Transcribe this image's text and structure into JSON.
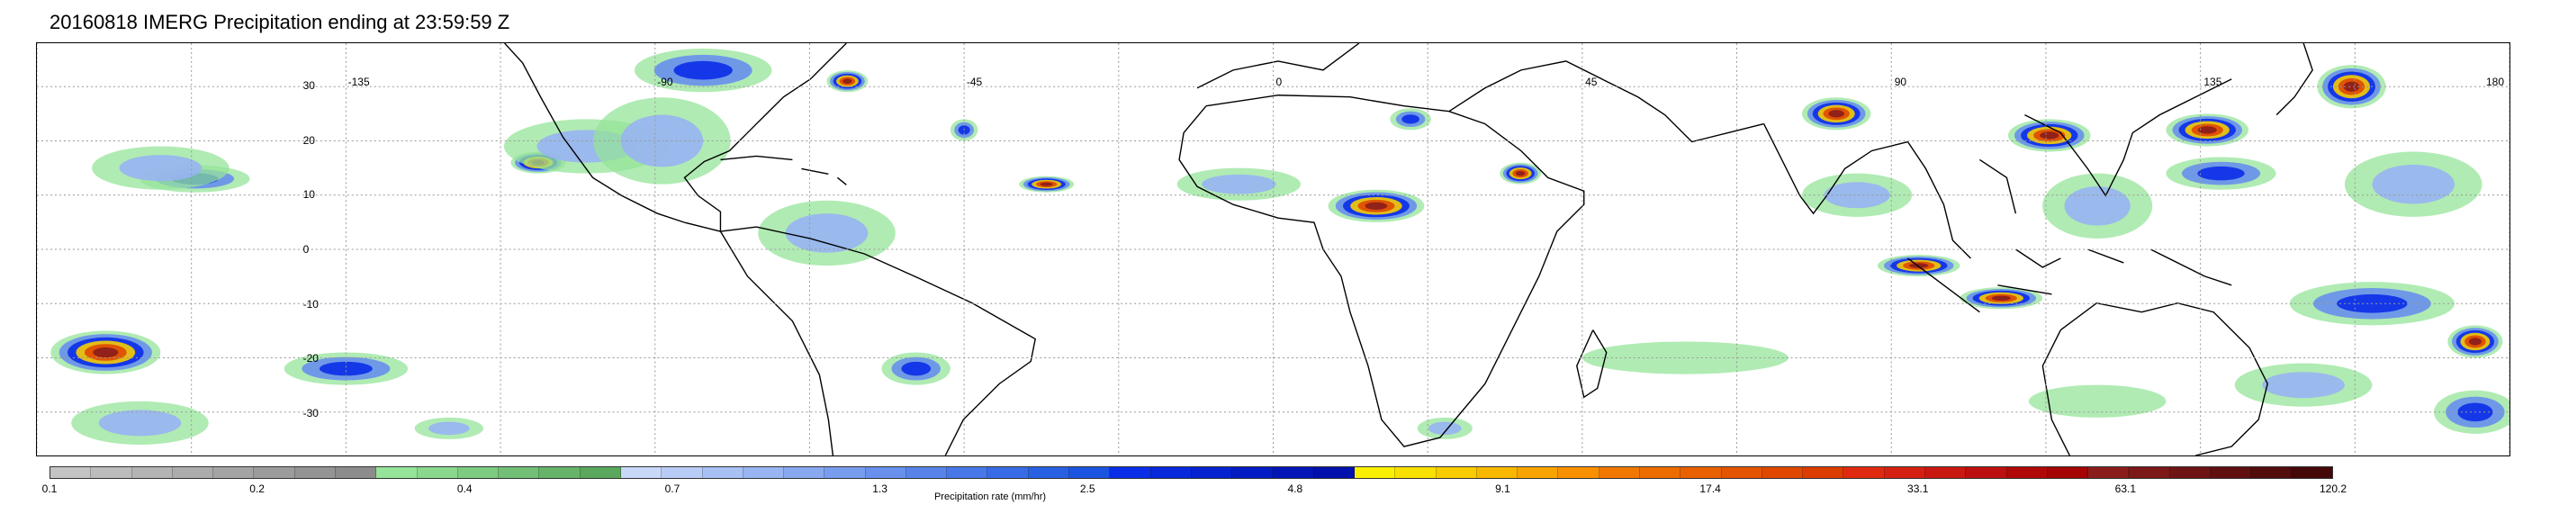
{
  "title": "20160818 IMERG Precipitation ending at 23:59:59 Z",
  "map": {
    "lon_range": [
      -180,
      180
    ],
    "lat_range": [
      -38,
      38
    ],
    "lon_labels": [
      "-135",
      "-90",
      "-45",
      "0",
      "45",
      "90",
      "135",
      "180"
    ],
    "lat_labels": [
      "30",
      "20",
      "10",
      "0",
      "-10",
      "-20",
      "-30"
    ],
    "gridlines": "dotted",
    "basemap": "coastlines"
  },
  "colorbar": {
    "caption": "Precipitation rate (mm/hr)",
    "tick_labels": [
      "0.1",
      "0.2",
      "0.4",
      "0.7",
      "1.3",
      "2.5",
      "4.8",
      "9.1",
      "17.4",
      "33.1",
      "63.1",
      "120.2"
    ],
    "colors": [
      "#c4c4c4",
      "#bcbcbc",
      "#b4b4b4",
      "#acacac",
      "#a4a4a4",
      "#9c9c9c",
      "#949494",
      "#8c8c8c",
      "#96e49a",
      "#8ad88e",
      "#7ecb82",
      "#72bf76",
      "#66b36a",
      "#5aa75e",
      "#c8d8f8",
      "#b8ccf6",
      "#a8c0f4",
      "#98b4f2",
      "#88a8f0",
      "#789cee",
      "#6890ec",
      "#5884ea",
      "#4878e8",
      "#386ce6",
      "#2860e4",
      "#1c54e2",
      "#0a2ee8",
      "#0828dc",
      "#0622d0",
      "#041cc4",
      "#0216b8",
      "#0010ac",
      "#f8f000",
      "#f8e000",
      "#f8cc00",
      "#f8b800",
      "#f8a400",
      "#f89000",
      "#f07800",
      "#ec6c00",
      "#e86000",
      "#e45400",
      "#e04800",
      "#dc3c00",
      "#e02a10",
      "#d42010",
      "#c81810",
      "#bc1010",
      "#b00808",
      "#a40404",
      "#8a1c1c",
      "#7c1818",
      "#6e1414",
      "#601010",
      "#520c0c",
      "#440808"
    ]
  },
  "precip_regions": [
    {
      "lon": -157,
      "lat": 13,
      "rx": 8,
      "ry": 2.5,
      "level": "moderate"
    },
    {
      "lon": -162,
      "lat": 15,
      "rx": 10,
      "ry": 4,
      "level": "light"
    },
    {
      "lon": -107,
      "lat": 16,
      "rx": 4,
      "ry": 2,
      "level": "heavy"
    },
    {
      "lon": -100,
      "lat": 19,
      "rx": 12,
      "ry": 5,
      "level": "light"
    },
    {
      "lon": -83,
      "lat": 33,
      "rx": 10,
      "ry": 4,
      "level": "moderate"
    },
    {
      "lon": -89,
      "lat": 20,
      "rx": 10,
      "ry": 8,
      "level": "light"
    },
    {
      "lon": -62,
      "lat": 31,
      "rx": 3,
      "ry": 2,
      "level": "heavy"
    },
    {
      "lon": -45,
      "lat": 22,
      "rx": 2,
      "ry": 2,
      "level": "moderate"
    },
    {
      "lon": -33,
      "lat": 12,
      "rx": 4,
      "ry": 1.5,
      "level": "heavy"
    },
    {
      "lon": -65,
      "lat": 3,
      "rx": 10,
      "ry": 6,
      "level": "light"
    },
    {
      "lon": -52,
      "lat": -22,
      "rx": 5,
      "ry": 3,
      "level": "moderate"
    },
    {
      "lon": -170,
      "lat": -19,
      "rx": 8,
      "ry": 4,
      "level": "heavy"
    },
    {
      "lon": -165,
      "lat": -32,
      "rx": 10,
      "ry": 4,
      "level": "light"
    },
    {
      "lon": -135,
      "lat": -22,
      "rx": 9,
      "ry": 3,
      "level": "moderate"
    },
    {
      "lon": -120,
      "lat": -33,
      "rx": 5,
      "ry": 2,
      "level": "light"
    },
    {
      "lon": -5,
      "lat": 12,
      "rx": 9,
      "ry": 3,
      "level": "light"
    },
    {
      "lon": 15,
      "lat": 8,
      "rx": 7,
      "ry": 3,
      "level": "heavy"
    },
    {
      "lon": 36,
      "lat": 14,
      "rx": 3,
      "ry": 2,
      "level": "heavy"
    },
    {
      "lon": 20,
      "lat": 24,
      "rx": 3,
      "ry": 2,
      "level": "moderate"
    },
    {
      "lon": 25,
      "lat": -33,
      "rx": 4,
      "ry": 2,
      "level": "light"
    },
    {
      "lon": 82,
      "lat": 25,
      "rx": 5,
      "ry": 3,
      "level": "heavy"
    },
    {
      "lon": 85,
      "lat": 10,
      "rx": 8,
      "ry": 4,
      "level": "light"
    },
    {
      "lon": 94,
      "lat": -3,
      "rx": 6,
      "ry": 2,
      "level": "heavy"
    },
    {
      "lon": 106,
      "lat": -9,
      "rx": 6,
      "ry": 2,
      "level": "heavy"
    },
    {
      "lon": 113,
      "lat": 21,
      "rx": 6,
      "ry": 3,
      "level": "heavy"
    },
    {
      "lon": 120,
      "lat": 8,
      "rx": 8,
      "ry": 6,
      "level": "light"
    },
    {
      "lon": 136,
      "lat": 22,
      "rx": 6,
      "ry": 3,
      "level": "heavy"
    },
    {
      "lon": 138,
      "lat": 14,
      "rx": 8,
      "ry": 3,
      "level": "moderate"
    },
    {
      "lon": 157,
      "lat": 30,
      "rx": 5,
      "ry": 4,
      "level": "heavy"
    },
    {
      "lon": 166,
      "lat": 12,
      "rx": 10,
      "ry": 6,
      "level": "light"
    },
    {
      "lon": 160,
      "lat": -10,
      "rx": 12,
      "ry": 4,
      "level": "moderate"
    },
    {
      "lon": 175,
      "lat": -17,
      "rx": 4,
      "ry": 3,
      "level": "heavy"
    },
    {
      "lon": 150,
      "lat": -25,
      "rx": 10,
      "ry": 4,
      "level": "light"
    },
    {
      "lon": 175,
      "lat": -30,
      "rx": 6,
      "ry": 4,
      "level": "moderate"
    },
    {
      "lon": 60,
      "lat": -20,
      "rx": 15,
      "ry": 3,
      "level": "trace"
    },
    {
      "lon": 120,
      "lat": -28,
      "rx": 10,
      "ry": 3,
      "level": "trace"
    }
  ]
}
